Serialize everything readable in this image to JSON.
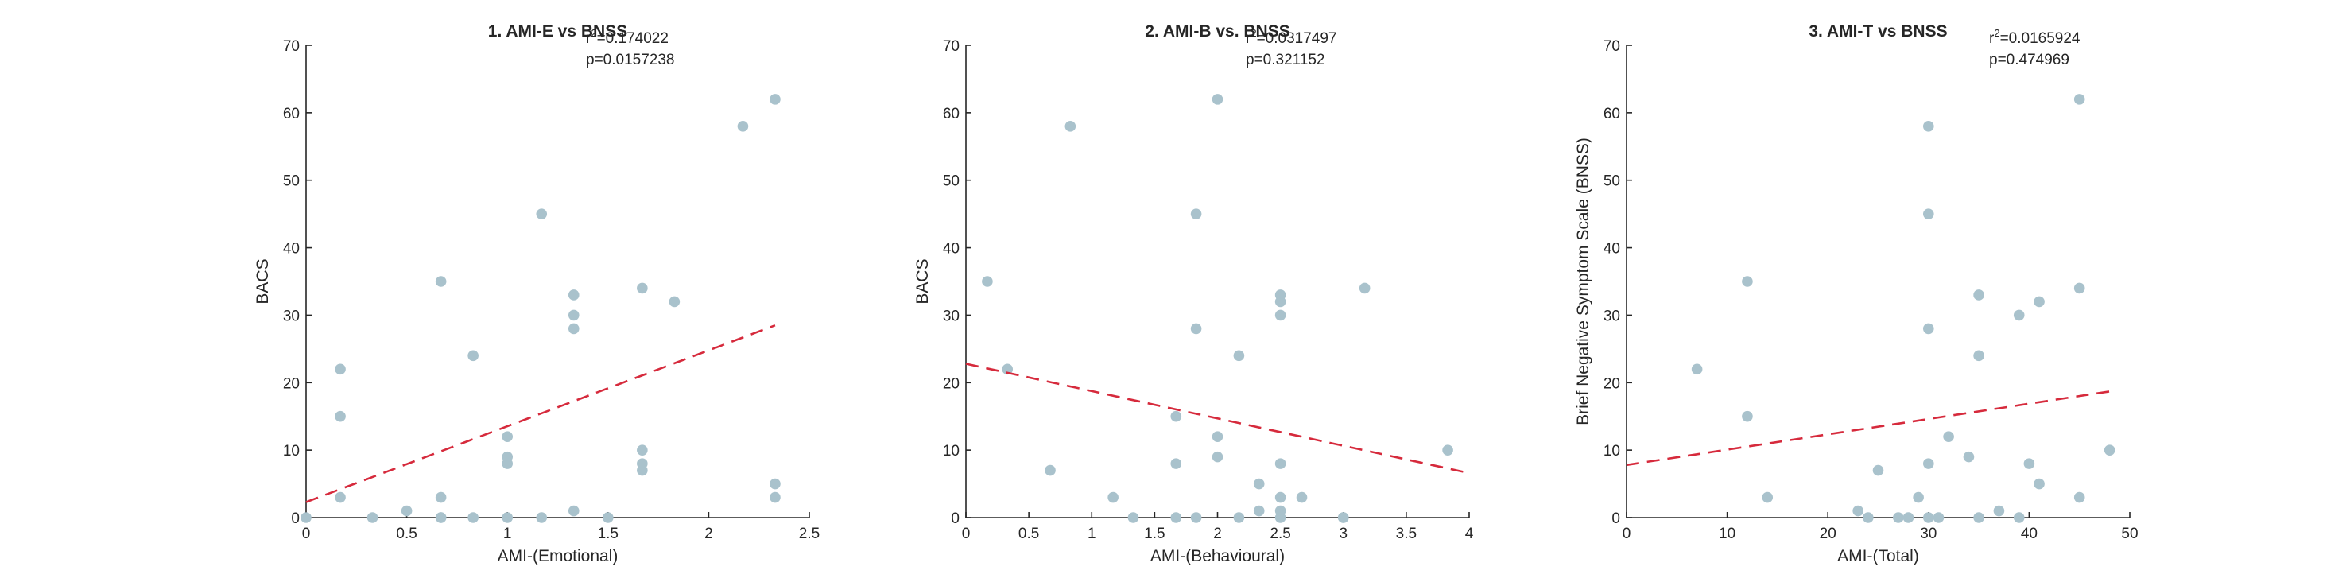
{
  "colors": {
    "points": "#a9c2cc",
    "fit_line": "#d62a3c",
    "axes": "#262626"
  },
  "chart_data": [
    {
      "type": "scatter",
      "title": "1. AMI-E vs BNSS",
      "xlabel": "AMI-(Emotional)",
      "ylabel": "BACS",
      "xlim": [
        0,
        2.5
      ],
      "ylim": [
        0,
        70
      ],
      "xticks": [
        0,
        0.5,
        1,
        1.5,
        2,
        2.5
      ],
      "yticks": [
        0,
        10,
        20,
        30,
        40,
        50,
        60,
        70
      ],
      "xtick_labels": [
        "0",
        "0.5",
        "1",
        "1.5",
        "2",
        "2.5"
      ],
      "ytick_labels": [
        "0",
        "10",
        "20",
        "30",
        "40",
        "50",
        "60",
        "70"
      ],
      "stats": {
        "r2_prefix": "r",
        "r2_value": "=0.174022",
        "p": "p=0.0157238"
      },
      "fit_line": {
        "x": [
          0,
          2.33
        ],
        "y": [
          2.3,
          28.5
        ]
      },
      "x": [
        0,
        0.17,
        0.17,
        0.17,
        0.33,
        0.5,
        0.67,
        0.67,
        0.67,
        0.67,
        0.83,
        0.83,
        1,
        1,
        1,
        1,
        1.17,
        1.17,
        1.33,
        1.33,
        1.33,
        1.33,
        1.5,
        1.67,
        1.67,
        1.67,
        1.67,
        1.83,
        2.17,
        2.33,
        2.33,
        2.33
      ],
      "y": [
        0,
        22,
        15,
        3,
        0,
        1,
        35,
        3,
        0,
        0,
        24,
        0,
        12,
        9,
        8,
        0,
        45,
        0,
        33,
        30,
        28,
        1,
        0,
        34,
        10,
        8,
        7,
        32,
        58,
        62,
        5,
        3
      ]
    },
    {
      "type": "scatter",
      "title": "2. AMI-B vs. BNSS",
      "xlabel": "AMI-(Behavioural)",
      "ylabel": "BACS",
      "xlim": [
        0,
        4
      ],
      "ylim": [
        0,
        70
      ],
      "xticks": [
        0,
        0.5,
        1,
        1.5,
        2,
        2.5,
        3,
        3.5,
        4
      ],
      "yticks": [
        0,
        10,
        20,
        30,
        40,
        50,
        60,
        70
      ],
      "xtick_labels": [
        "0",
        "0.5",
        "1",
        "1.5",
        "2",
        "2.5",
        "3",
        "3.5",
        "4"
      ],
      "ytick_labels": [
        "0",
        "10",
        "20",
        "30",
        "40",
        "50",
        "60",
        "70"
      ],
      "stats": {
        "r2_prefix": "r",
        "r2_value": "=0.0317497",
        "p": "p=0.321152"
      },
      "fit_line": {
        "x": [
          0,
          4
        ],
        "y": [
          22.8,
          6.6
        ]
      },
      "x": [
        0.17,
        0.33,
        0.67,
        0.83,
        1.17,
        1.33,
        1.67,
        1.67,
        1.67,
        1.83,
        1.83,
        1.83,
        2,
        2,
        2,
        2.17,
        2.17,
        2.33,
        2.33,
        2.5,
        2.5,
        2.5,
        2.5,
        2.5,
        2.5,
        2.5,
        2.67,
        3,
        3,
        3.17,
        3.83
      ],
      "y": [
        35,
        22,
        7,
        58,
        3,
        0,
        15,
        8,
        0,
        45,
        28,
        0,
        62,
        12,
        9,
        24,
        0,
        5,
        1,
        33,
        32,
        30,
        8,
        3,
        1,
        0,
        3,
        0,
        0,
        34,
        10
      ]
    },
    {
      "type": "scatter",
      "title": "3. AMI-T vs BNSS",
      "xlabel": "AMI-(Total)",
      "ylabel": "Brief Negative Symptom Scale (BNSS)",
      "xlim": [
        0,
        50
      ],
      "ylim": [
        0,
        70
      ],
      "xticks": [
        0,
        10,
        20,
        30,
        40,
        50
      ],
      "yticks": [
        0,
        10,
        20,
        30,
        40,
        50,
        60,
        70
      ],
      "xtick_labels": [
        "0",
        "10",
        "20",
        "30",
        "40",
        "50"
      ],
      "ytick_labels": [
        "0",
        "10",
        "20",
        "30",
        "40",
        "50",
        "60",
        "70"
      ],
      "stats": {
        "r2_prefix": "r",
        "r2_value": "=0.0165924",
        "p": "p=0.474969"
      },
      "fit_line": {
        "x": [
          0,
          48
        ],
        "y": [
          7.8,
          18.7
        ]
      },
      "x": [
        7,
        12,
        12,
        14,
        23,
        24,
        25,
        27,
        28,
        29,
        30,
        30,
        30,
        30,
        30,
        31,
        32,
        34,
        35,
        35,
        35,
        37,
        39,
        39,
        40,
        41,
        41,
        45,
        45,
        45,
        48
      ],
      "y": [
        22,
        35,
        15,
        3,
        1,
        0,
        7,
        0,
        0,
        3,
        58,
        45,
        28,
        8,
        0,
        0,
        12,
        9,
        33,
        24,
        0,
        1,
        30,
        0,
        8,
        32,
        5,
        62,
        34,
        3,
        10
      ]
    }
  ]
}
